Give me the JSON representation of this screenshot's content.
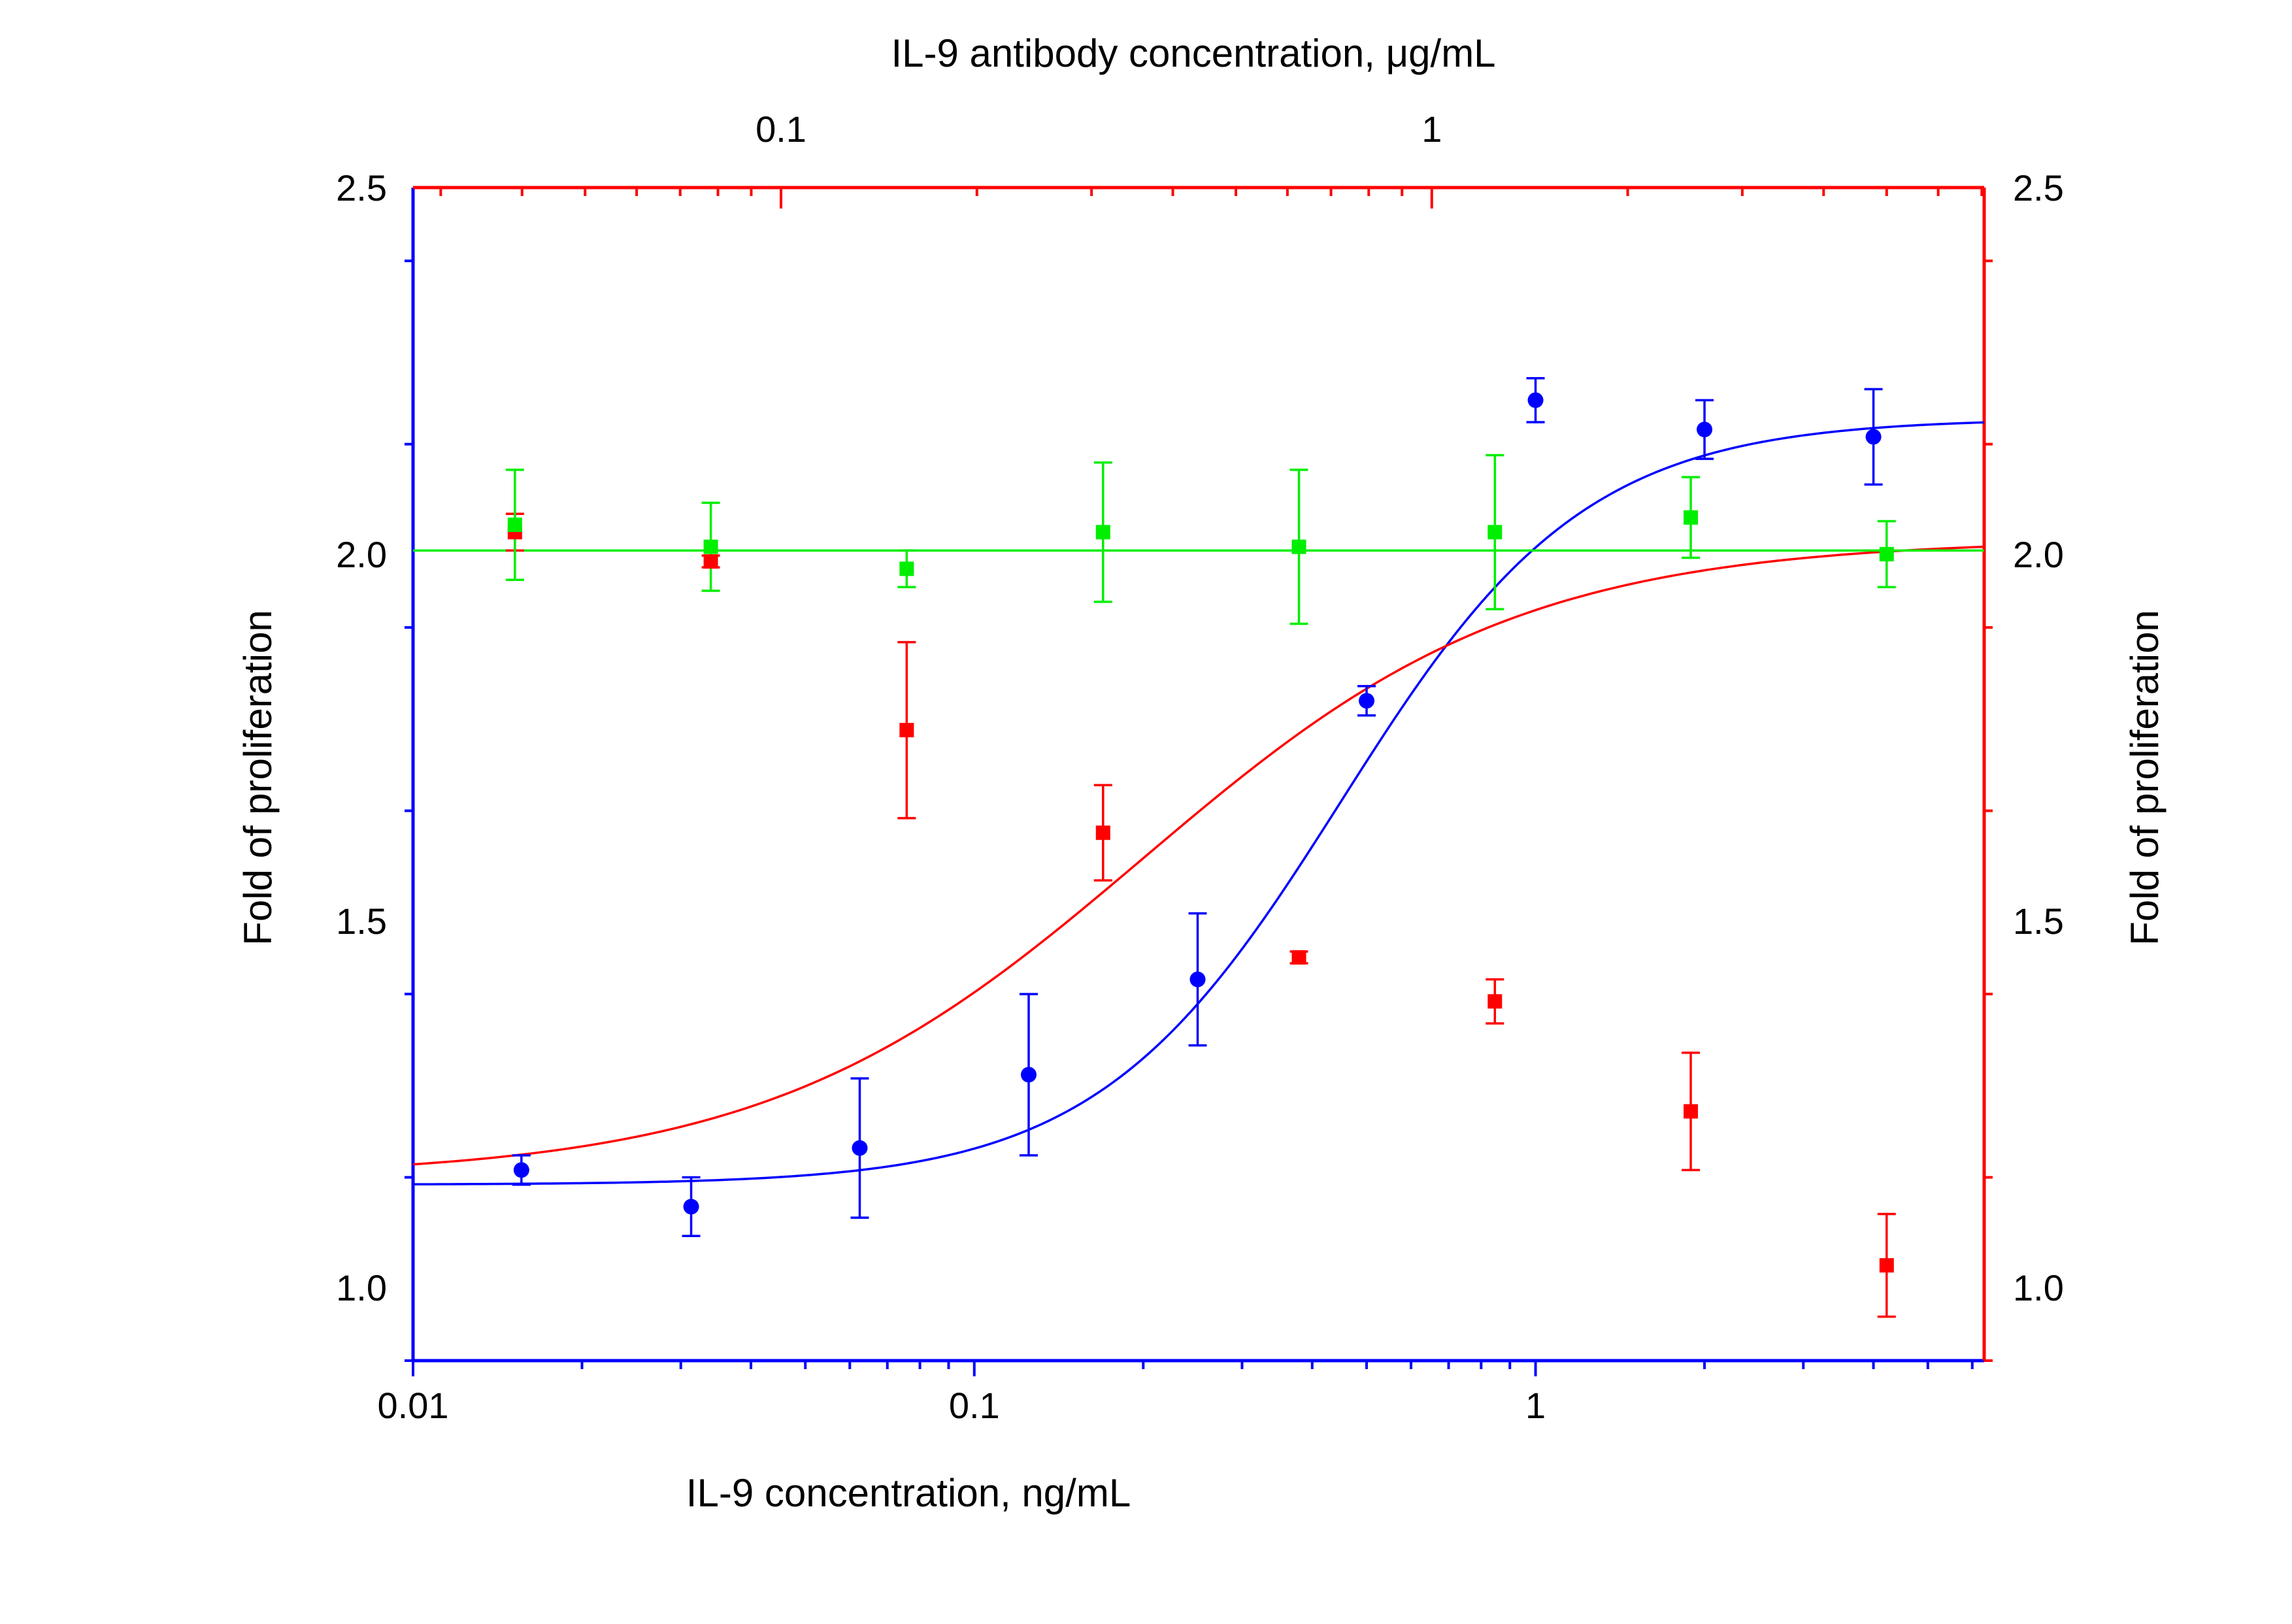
{
  "chart_data": {
    "type": "scatter",
    "x_bottom": {
      "label": "IL-9  concentration, ng/mL",
      "scale": "log",
      "range": [
        0.01,
        6.3
      ],
      "tick_labels": [
        "0.01",
        "0.1",
        "1"
      ],
      "tick_values": [
        0.01,
        0.1,
        1
      ],
      "color": "#0000ff"
    },
    "x_top": {
      "label": "IL-9 antibody concentration, μg/mL",
      "scale": "log",
      "range": [
        0.0272,
        7.06
      ],
      "tick_labels": [
        "0.1",
        "1"
      ],
      "tick_values": [
        0.1,
        1
      ],
      "color": "#ff0000"
    },
    "y_left": {
      "label": "Fold of proliferation",
      "range": [
        0.9,
        2.5
      ],
      "tick_labels": [
        "1.0",
        "1.5",
        "2.0",
        "2.5"
      ],
      "tick_values": [
        1.0,
        1.5,
        2.0,
        2.5
      ],
      "color": "#0000ff"
    },
    "y_right": {
      "label": "Fold of proliferation",
      "range": [
        0.9,
        2.5
      ],
      "tick_labels": [
        "1.0",
        "1.5",
        "2.0",
        "2.5"
      ],
      "tick_values": [
        1.0,
        1.5,
        2.0,
        2.5
      ],
      "color": "#ff0000"
    },
    "series": [
      {
        "axis_x": "bottom",
        "marker": "circle",
        "color": "#0000ff",
        "x": [
          0.0156,
          0.0313,
          0.0625,
          0.125,
          0.25,
          0.5,
          1.0,
          2.0,
          4.0
        ],
        "y": [
          1.16,
          1.11,
          1.19,
          1.29,
          1.42,
          1.8,
          2.21,
          2.17,
          2.16
        ],
        "err": [
          0.02,
          0.04,
          0.095,
          0.11,
          0.09,
          0.02,
          0.03,
          0.04,
          0.065
        ],
        "fit": {
          "bottom": 1.14,
          "top": 2.185,
          "ec50": 0.45,
          "hill": 2.0
        }
      },
      {
        "axis_x": "top",
        "marker": "square",
        "color": "#ff0000",
        "x": [
          0.039,
          0.078,
          0.156,
          0.3125,
          0.625,
          1.25,
          2.5,
          5.0
        ],
        "y": [
          2.03,
          1.99,
          1.76,
          1.62,
          1.45,
          1.39,
          1.24,
          1.03
        ],
        "err": [
          0.025,
          0.008,
          0.12,
          0.065,
          0.008,
          0.03,
          0.08,
          0.07
        ],
        "fit": {
          "bottom": 1.15,
          "top": 2.02,
          "ec50": 0.36,
          "hill": 1.5
        }
      },
      {
        "axis_x": "top",
        "marker": "square",
        "color": "#00ee00",
        "x": [
          0.039,
          0.078,
          0.156,
          0.3125,
          0.625,
          1.25,
          2.5,
          5.0
        ],
        "y": [
          2.04,
          2.01,
          1.98,
          2.03,
          2.01,
          2.03,
          2.05,
          2.0
        ],
        "err": [
          0.075,
          0.06,
          0.025,
          0.095,
          0.105,
          0.105,
          0.055,
          0.045
        ],
        "fit": {
          "constant": 2.005
        }
      }
    ]
  }
}
